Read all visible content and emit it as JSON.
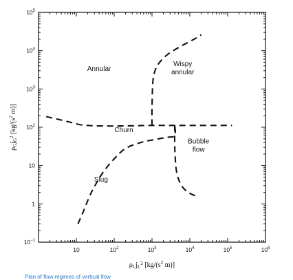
{
  "chart_data": {
    "type": "line",
    "title": "",
    "xlabel": "ρ_L j_L^2 [kg/(s^2 m)]",
    "ylabel": "ρ_G j_G^2 [kg/(s^2 m)]",
    "xscale": "log",
    "yscale": "log",
    "xlim": [
      1,
      1000000
    ],
    "ylim": [
      0.1,
      100000
    ],
    "x_ticks": [
      {
        "value": 10,
        "base": "10",
        "exp": ""
      },
      {
        "value": 100,
        "base": "10",
        "exp": "2"
      },
      {
        "value": 1000,
        "base": "10",
        "exp": "3"
      },
      {
        "value": 10000,
        "base": "10",
        "exp": "4"
      },
      {
        "value": 100000,
        "base": "10",
        "exp": "5"
      },
      {
        "value": 1000000,
        "base": "10",
        "exp": "6"
      }
    ],
    "y_ticks": [
      {
        "value": 0.1,
        "base": "10",
        "exp": "−1"
      },
      {
        "value": 1,
        "base": "1",
        "exp": ""
      },
      {
        "value": 10,
        "base": "10",
        "exp": ""
      },
      {
        "value": 100,
        "base": "10",
        "exp": "2"
      },
      {
        "value": 1000,
        "base": "10",
        "exp": "3"
      },
      {
        "value": 10000,
        "base": "10",
        "exp": "4"
      },
      {
        "value": 100000,
        "base": "10",
        "exp": "5"
      }
    ],
    "grid": false,
    "line_style": "dashed",
    "regions": [
      {
        "label": "Annular",
        "lines": [
          "Annular"
        ],
        "x": 40,
        "y": 3000
      },
      {
        "label": "Wispy annular",
        "lines": [
          "Wispy",
          "annular"
        ],
        "x": 6500,
        "y": 4000
      },
      {
        "label": "Churn",
        "lines": [
          "Churn"
        ],
        "x": 180,
        "y": 75
      },
      {
        "label": "Bubble flow",
        "lines": [
          "Bubble",
          "flow"
        ],
        "x": 17000,
        "y": 38
      },
      {
        "label": "Slug",
        "lines": [
          "Slug"
        ],
        "x": 45,
        "y": 3.8
      }
    ],
    "boundaries": [
      {
        "x": [
          1.6,
          3,
          6,
          12,
          25,
          60,
          150,
          400,
          1000,
          3000,
          10000,
          40000,
          130000
        ],
        "y": [
          190,
          165,
          140,
          118,
          110,
          108,
          108,
          110,
          112,
          112,
          112,
          112,
          112
        ]
      },
      {
        "x": [
          1000,
          1000,
          1050,
          1200,
          1600,
          2600,
          4600,
          8000,
          13000,
          20000
        ],
        "y": [
          112,
          300,
          1500,
          3000,
          5000,
          8000,
          11500,
          15500,
          20000,
          26000
        ]
      },
      {
        "x": [
          11,
          15,
          25,
          50,
          100,
          200,
          500,
          1200,
          2500,
          4000,
          4000
        ],
        "y": [
          0.3,
          0.6,
          2,
          6.5,
          15,
          28,
          40,
          48,
          55,
          60,
          112
        ]
      },
      {
        "x": [
          4000,
          4000,
          4300,
          5000,
          6500,
          9000,
          12500,
          17000
        ],
        "y": [
          112,
          30,
          9,
          4.5,
          2.7,
          2.0,
          1.7,
          1.5
        ]
      }
    ]
  },
  "caption": "Plan of flow regimes of vertical flow"
}
